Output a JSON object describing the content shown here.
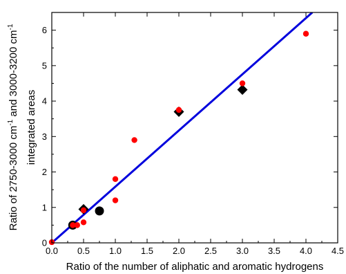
{
  "chart_data": {
    "type": "scatter",
    "title": "",
    "xlabel": "Ratio of the number of aliphatic and aromatic hydrogens",
    "ylabel": {
      "line1_part1": "Ratio of 2750-3000 cm",
      "line1_sup1": "-1",
      "line1_part2": " and  3000-3200 cm",
      "line1_sup2": "-1",
      "line2": "integrated areas"
    },
    "xlim": [
      0,
      4.5
    ],
    "ylim": [
      0,
      6.5
    ],
    "x_ticks": [
      "0.0",
      "0.5",
      "1.0",
      "1.5",
      "2.0",
      "2.5",
      "3.0",
      "3.5",
      "4.0",
      "4.5"
    ],
    "x_tick_values": [
      0,
      0.5,
      1.0,
      1.5,
      2.0,
      2.5,
      3.0,
      3.5,
      4.0,
      4.5
    ],
    "y_ticks": [
      "0",
      "1",
      "2",
      "3",
      "4",
      "5",
      "6"
    ],
    "y_tick_values": [
      0,
      1,
      2,
      3,
      4,
      5,
      6
    ],
    "grid": false,
    "series": [
      {
        "marker": "circle-small",
        "color": "#ff0000",
        "points": [
          {
            "x": 0.0,
            "y": 0.02
          },
          {
            "x": 0.33,
            "y": 0.5
          },
          {
            "x": 0.4,
            "y": 0.5
          },
          {
            "x": 0.5,
            "y": 0.58
          },
          {
            "x": 0.5,
            "y": 0.92
          },
          {
            "x": 1.0,
            "y": 1.8
          },
          {
            "x": 1.0,
            "y": 1.2
          },
          {
            "x": 1.3,
            "y": 2.9
          },
          {
            "x": 2.0,
            "y": 3.75
          },
          {
            "x": 3.0,
            "y": 4.5
          },
          {
            "x": 4.0,
            "y": 5.9
          }
        ]
      },
      {
        "marker": "circle-large",
        "color": "#000000",
        "points": [
          {
            "x": 0.33,
            "y": 0.5
          },
          {
            "x": 0.75,
            "y": 0.9
          }
        ]
      },
      {
        "marker": "diamond",
        "color": "#000000",
        "points": [
          {
            "x": 0.5,
            "y": 0.95
          },
          {
            "x": 2.0,
            "y": 3.7
          },
          {
            "x": 3.0,
            "y": 4.32
          }
        ]
      }
    ],
    "fit_line": {
      "color": "#0000dd",
      "x": [
        0.0,
        4.1
      ],
      "y": [
        0.0,
        6.5
      ]
    },
    "legend": "none"
  }
}
